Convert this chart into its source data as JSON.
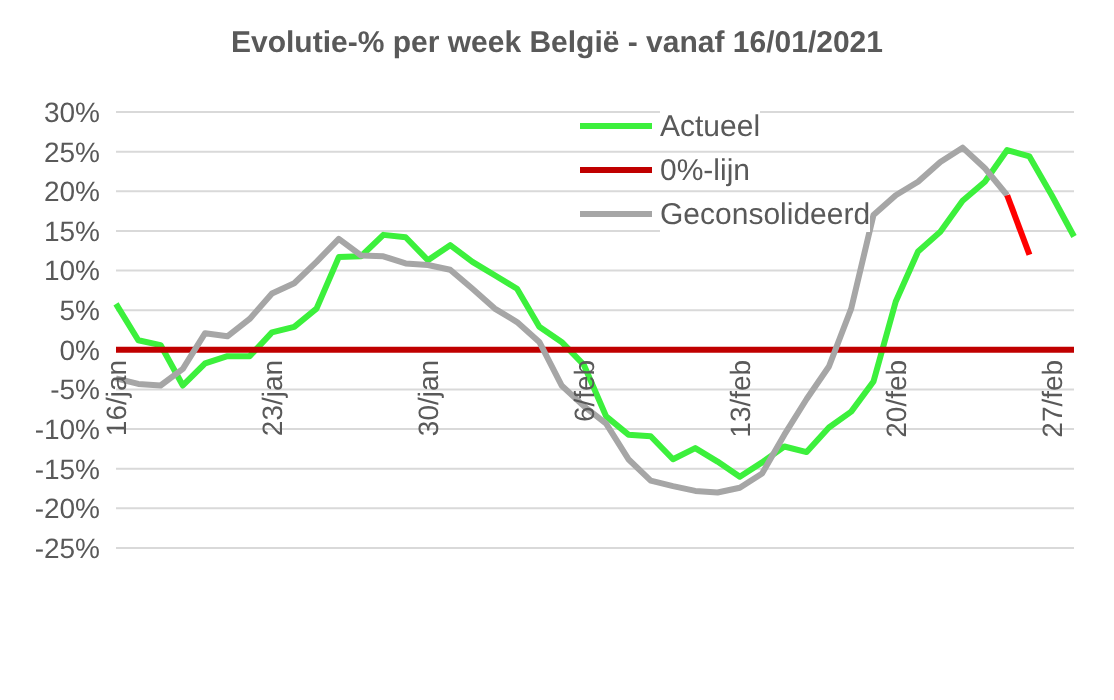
{
  "chart_data": {
    "type": "line",
    "title": "Evolutie-% per week België - vanaf 16/01/2021",
    "categories": [
      "16/jan",
      null,
      null,
      null,
      null,
      null,
      null,
      "23/jan",
      null,
      null,
      null,
      null,
      null,
      null,
      "30/jan",
      null,
      null,
      null,
      null,
      null,
      null,
      "6/feb",
      null,
      null,
      null,
      null,
      null,
      null,
      "13/feb",
      null,
      null,
      null,
      null,
      null,
      null,
      "20/feb",
      null,
      null,
      null,
      null,
      null,
      null,
      "27/feb",
      null
    ],
    "series": [
      {
        "name": "Actueel",
        "color": "#3cf03c",
        "values": [
          5.8,
          1.2,
          0.6,
          -4.5,
          -1.7,
          -0.8,
          -0.8,
          2.2,
          2.9,
          5.2,
          11.7,
          11.8,
          14.5,
          14.2,
          11.3,
          13.2,
          11.1,
          9.4,
          7.7,
          2.9,
          1.0,
          -1.9,
          -8.4,
          -10.7,
          -10.9,
          -13.8,
          -12.4,
          -14.1,
          -16.0,
          -14.2,
          -12.2,
          -12.9,
          -9.8,
          -7.8,
          -4.0,
          6.1,
          12.4,
          14.9,
          18.8,
          21.2,
          25.2,
          24.4,
          19.5,
          14.3
        ]
      },
      {
        "name": "0%-lijn",
        "color": "#c00000",
        "values": [
          0,
          0,
          0,
          0,
          0,
          0,
          0,
          0,
          0,
          0,
          0,
          0,
          0,
          0,
          0,
          0,
          0,
          0,
          0,
          0,
          0,
          0,
          0,
          0,
          0,
          0,
          0,
          0,
          0,
          0,
          0,
          0,
          0,
          0,
          0,
          0,
          0,
          0,
          0,
          0,
          0,
          0,
          0,
          0
        ]
      },
      {
        "name": "Geconsolideerd",
        "color": "#a6a6a6",
        "values": [
          -3.6,
          -4.3,
          -4.5,
          -2.4,
          2.1,
          1.7,
          3.9,
          7.1,
          8.4,
          11.1,
          14.0,
          11.9,
          11.8,
          10.9,
          10.7,
          10.1,
          7.7,
          5.2,
          3.5,
          1.0,
          -4.5,
          -7.1,
          -9.3,
          -13.8,
          -16.5,
          -17.2,
          -17.8,
          -18.0,
          -17.4,
          -15.6,
          -10.7,
          -6.2,
          -2.1,
          5.2,
          17.0,
          19.5,
          21.2,
          23.7,
          25.5,
          22.9,
          19.5,
          null,
          null,
          null
        ]
      },
      {
        "color": "#ff0000",
        "values": [
          null,
          null,
          null,
          null,
          null,
          null,
          null,
          null,
          null,
          null,
          null,
          null,
          null,
          null,
          null,
          null,
          null,
          null,
          null,
          null,
          null,
          null,
          null,
          null,
          null,
          null,
          null,
          null,
          null,
          null,
          null,
          null,
          null,
          null,
          null,
          null,
          null,
          null,
          null,
          null,
          19.5,
          12.0,
          null,
          null
        ]
      }
    ],
    "ylim": [
      -25,
      30
    ],
    "yticks": [
      {
        "value": -25,
        "label": "-25%"
      },
      {
        "value": -20,
        "label": "-20%"
      },
      {
        "value": -15,
        "label": "-15%"
      },
      {
        "value": -10,
        "label": "-10%"
      },
      {
        "value": -5,
        "label": "-5%"
      },
      {
        "value": 0,
        "label": "0%"
      },
      {
        "value": 5,
        "label": "5%"
      },
      {
        "value": 10,
        "label": "10%"
      },
      {
        "value": 15,
        "label": "15%"
      },
      {
        "value": 20,
        "label": "20%"
      },
      {
        "value": 25,
        "label": "25%"
      },
      {
        "value": 30,
        "label": "30%"
      }
    ],
    "grid": "y",
    "legend": "top right",
    "marker": "none",
    "line_style": "solid"
  }
}
